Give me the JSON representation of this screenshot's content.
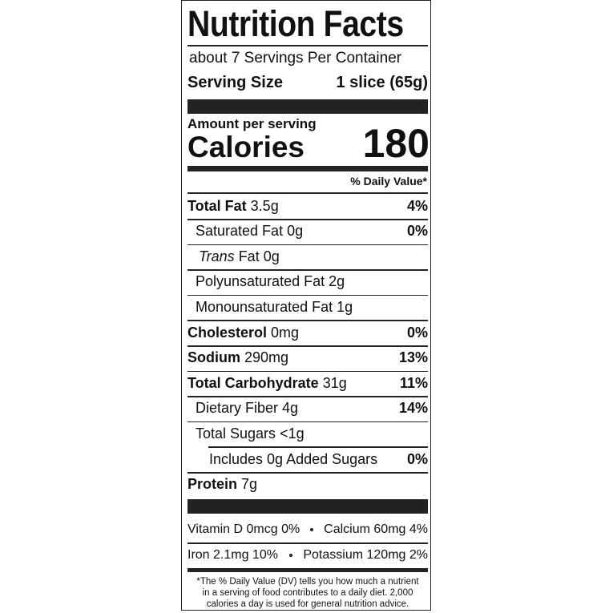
{
  "header": {
    "title": "Nutrition Facts",
    "servings": "about  7 Servings Per Container",
    "serving_size_label": "Serving Size",
    "serving_size_value": "1 slice (65g)"
  },
  "calories": {
    "amount_per_serving": "Amount per serving",
    "label": "Calories",
    "value": "180"
  },
  "daily_value_header": "% Daily Value*",
  "nutrients": [
    {
      "name": "Total Fat",
      "amount": "3.5g",
      "dv": "4%"
    },
    {
      "name": "Saturated Fat",
      "amount": "0g",
      "dv": "0%"
    },
    {
      "italic_prefix": "Trans",
      "name": "Fat",
      "amount": "0g"
    },
    {
      "name": "Polyunsaturated Fat",
      "amount": "2g"
    },
    {
      "name": "Monounsaturated Fat",
      "amount": "1g"
    },
    {
      "name": "Cholesterol",
      "amount": "0mg",
      "dv": "0%"
    },
    {
      "name": "Sodium",
      "amount": "290mg",
      "dv": "13%"
    },
    {
      "name": "Total Carbohydrate",
      "amount": "31g",
      "dv": "11%"
    },
    {
      "name": "Dietary Fiber",
      "amount": "4g",
      "dv": "14%"
    },
    {
      "name": "Total Sugars",
      "amount": "<1g"
    },
    {
      "name": "Includes 0g Added Sugars",
      "dv": "0%"
    },
    {
      "name": "Protein",
      "amount": "7g"
    }
  ],
  "vitamins": [
    [
      "Vitamin D 0mcg 0%",
      "Calcium 60mg 4%"
    ],
    [
      "Iron 2.1mg 10%",
      "Potassium 120mg 2%"
    ]
  ],
  "footnote": [
    "*The % Daily Value (DV) tells you how much a nutrient",
    "in a serving of food contributes to a daily diet. 2,000",
    "calories a day is used for general nutrition advice."
  ]
}
